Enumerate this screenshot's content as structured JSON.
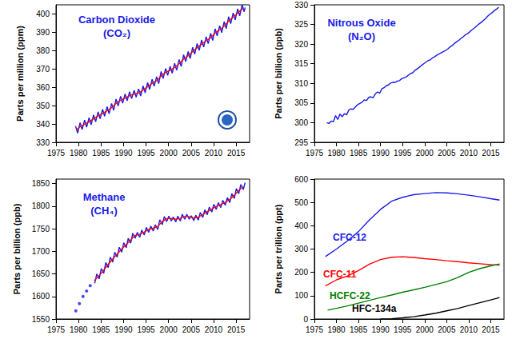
{
  "chart_data": [
    {
      "type": "line",
      "title": "Carbon Dioxide\n(CO₂)",
      "ylabel": "Parts per million (ppm)",
      "xlim": [
        1975,
        2018
      ],
      "xticks": [
        1975,
        1980,
        1985,
        1990,
        1995,
        2000,
        2005,
        2010,
        2015
      ],
      "ylim": [
        330,
        405
      ],
      "yticks": [
        330,
        340,
        350,
        360,
        370,
        380,
        390,
        400
      ],
      "grid": false,
      "series": [
        {
          "color": "#1a1ae6",
          "x": [
            1979.35,
            1979.8,
            1980.35,
            1980.8,
            1981.35,
            1981.8,
            1982.35,
            1982.8,
            1983.35,
            1983.8,
            1984.35,
            1984.8,
            1985.35,
            1985.8,
            1986.35,
            1986.8,
            1987.35,
            1987.8,
            1988.35,
            1988.8,
            1989.35,
            1989.8,
            1990.35,
            1990.8,
            1991.35,
            1991.8,
            1992.35,
            1992.8,
            1993.35,
            1993.8,
            1994.35,
            1994.8,
            1995.35,
            1995.8,
            1996.35,
            1996.8,
            1997.35,
            1997.8,
            1998.35,
            1998.8,
            1999.35,
            1999.8,
            2000.35,
            2000.8,
            2001.35,
            2001.8,
            2002.35,
            2002.8,
            2003.35,
            2003.8,
            2004.35,
            2004.8,
            2005.35,
            2005.8,
            2006.35,
            2006.8,
            2007.35,
            2007.8,
            2008.35,
            2008.8,
            2009.35,
            2009.8,
            2010.35,
            2010.8,
            2011.35,
            2011.8,
            2012.35,
            2012.8,
            2013.35,
            2013.8,
            2014.35,
            2014.8,
            2015.35,
            2015.8,
            2016.35,
            2016.8,
            2017.0
          ],
          "values": [
            338.8,
            335.0,
            340.7,
            336.9,
            342.1,
            338.3,
            343.4,
            339.6,
            345.0,
            341.2,
            346.6,
            342.8,
            348.0,
            344.2,
            349.4,
            345.6,
            351.2,
            347.4,
            353.6,
            349.8,
            355.1,
            351.3,
            356.4,
            352.6,
            357.6,
            353.8,
            358.4,
            354.6,
            359.1,
            355.3,
            360.8,
            357.0,
            362.6,
            358.8,
            364.4,
            360.6,
            365.8,
            362.0,
            368.6,
            364.8,
            370.3,
            366.5,
            371.5,
            367.7,
            373.1,
            369.3,
            375.2,
            371.4,
            377.8,
            374.0,
            379.5,
            375.7,
            381.8,
            378.0,
            383.9,
            380.1,
            385.8,
            382.0,
            387.6,
            383.8,
            389.4,
            385.6,
            391.9,
            388.1,
            393.6,
            389.8,
            395.8,
            392.0,
            398.5,
            394.7,
            400.6,
            396.8,
            402.8,
            399.0,
            405.0,
            401.2,
            403.5
          ]
        },
        {
          "color": "#ff0000",
          "x": [
            1979.5,
            1980.5,
            1981.5,
            1982.5,
            1983.5,
            1984.5,
            1985.5,
            1986.5,
            1987.5,
            1988.5,
            1989.5,
            1990.5,
            1991.5,
            1992.5,
            1993.5,
            1994.5,
            1995.5,
            1996.5,
            1997.5,
            1998.5,
            1999.5,
            2000.5,
            2001.5,
            2002.5,
            2003.5,
            2004.5,
            2005.5,
            2006.5,
            2007.5,
            2008.5,
            2009.5,
            2010.5,
            2011.5,
            2012.5,
            2013.5,
            2014.5,
            2015.5,
            2016.5
          ],
          "values": [
            336.8,
            338.7,
            340.1,
            341.4,
            343.0,
            344.6,
            346.0,
            347.4,
            349.2,
            351.6,
            353.1,
            354.4,
            355.6,
            356.4,
            357.1,
            358.8,
            360.6,
            362.4,
            363.8,
            366.6,
            368.3,
            369.5,
            371.1,
            373.2,
            375.8,
            377.5,
            379.8,
            381.9,
            383.8,
            385.6,
            387.4,
            389.9,
            391.6,
            393.8,
            396.5,
            398.6,
            400.8,
            403.0
          ]
        }
      ]
    },
    {
      "type": "line",
      "title": "Nitrous Oxide\n(N₂O)",
      "ylabel": "Parts per billion (ppb)",
      "xlim": [
        1975,
        2018
      ],
      "xticks": [
        1975,
        1980,
        1985,
        1990,
        1995,
        2000,
        2005,
        2010,
        2015
      ],
      "ylim": [
        295,
        330
      ],
      "yticks": [
        295,
        300,
        305,
        310,
        315,
        320,
        325,
        330
      ],
      "grid": false,
      "series": [
        {
          "color": "#1a1ae6",
          "x": [
            1977.8,
            1978.3,
            1978.8,
            1979.3,
            1979.8,
            1980.3,
            1980.8,
            1981.3,
            1981.8,
            1982.3,
            1982.8,
            1983.3,
            1983.8,
            1984.3,
            1984.8,
            1985.3,
            1985.8,
            1986.3,
            1986.8,
            1987.3,
            1987.8,
            1988.3,
            1988.8,
            1989.3,
            1989.8,
            1990.3,
            1990.8,
            1991.3,
            1991.8,
            1992.3,
            1992.8,
            1993.3,
            1993.8,
            1994.3,
            1994.8,
            1995.3,
            1995.8,
            1996.3,
            1996.8,
            1997.3,
            1997.8,
            1998.3,
            1998.8,
            1999.3,
            1999.8,
            2000.3,
            2000.8,
            2001.3,
            2001.8,
            2002.3,
            2002.8,
            2003.3,
            2003.8,
            2004.3,
            2004.8,
            2005.3,
            2005.8,
            2006.3,
            2006.8,
            2007.3,
            2007.8,
            2008.3,
            2008.8,
            2009.3,
            2009.8,
            2010.3,
            2010.8,
            2011.3,
            2011.8,
            2012.3,
            2012.8,
            2013.3,
            2013.8,
            2014.3,
            2014.8,
            2015.3,
            2015.8,
            2016.3,
            2016.8
          ],
          "values": [
            300.0,
            299.8,
            300.4,
            300.2,
            301.8,
            300.8,
            302.2,
            301.5,
            302.3,
            302.0,
            303.2,
            303.5,
            303.4,
            304.0,
            304.6,
            304.9,
            305.2,
            305.8,
            305.6,
            306.4,
            306.6,
            306.3,
            307.3,
            307.8,
            307.5,
            308.6,
            308.9,
            309.4,
            309.6,
            310.1,
            310.3,
            310.2,
            310.6,
            310.7,
            311.2,
            311.4,
            311.6,
            312.1,
            312.5,
            312.7,
            313.3,
            313.7,
            314.1,
            314.6,
            315.0,
            315.4,
            315.8,
            316.0,
            316.5,
            316.8,
            317.2,
            317.5,
            317.8,
            318.1,
            318.4,
            318.8,
            319.3,
            319.7,
            320.2,
            320.6,
            321.0,
            321.5,
            321.9,
            322.4,
            322.7,
            323.2,
            323.7,
            324.1,
            324.6,
            325.1,
            325.5,
            326.0,
            326.5,
            327.1,
            327.6,
            328.0,
            328.5,
            328.9,
            329.4
          ]
        }
      ]
    },
    {
      "type": "line",
      "title": "Methane\n(CH₄)",
      "ylabel": "Parts per billion (ppb)",
      "xlim": [
        1975,
        2018
      ],
      "xticks": [
        1975,
        1980,
        1985,
        1990,
        1995,
        2000,
        2005,
        2010,
        2015
      ],
      "ylim": [
        1550,
        1860
      ],
      "yticks": [
        1550,
        1600,
        1650,
        1700,
        1750,
        1800,
        1850
      ],
      "grid": false,
      "series": [
        {
          "type": "scatter",
          "marker": "circle",
          "color": "#1a1ae6",
          "x": [
            1979.4,
            1980.2,
            1981.0,
            1981.8,
            1982.6
          ],
          "values": [
            1568,
            1584,
            1600,
            1612,
            1624
          ]
        },
        {
          "color": "#1a1ae6",
          "x": [
            1983.6,
            1984.05,
            1984.6,
            1985.05,
            1985.6,
            1986.05,
            1986.6,
            1987.05,
            1987.6,
            1988.05,
            1988.6,
            1989.05,
            1989.6,
            1990.05,
            1990.6,
            1991.05,
            1991.6,
            1992.05,
            1992.6,
            1993.05,
            1993.6,
            1994.05,
            1994.6,
            1995.05,
            1995.6,
            1996.05,
            1996.6,
            1997.05,
            1997.6,
            1998.05,
            1998.6,
            1999.05,
            1999.6,
            2000.05,
            2000.6,
            2001.05,
            2001.6,
            2002.05,
            2002.6,
            2003.05,
            2003.6,
            2004.05,
            2004.6,
            2005.05,
            2005.6,
            2006.05,
            2006.6,
            2007.05,
            2007.6,
            2008.05,
            2008.6,
            2009.05,
            2009.6,
            2010.05,
            2010.6,
            2011.05,
            2011.6,
            2012.05,
            2012.6,
            2013.05,
            2013.6,
            2014.05,
            2014.6,
            2015.05,
            2015.6,
            2016.05,
            2016.6,
            2017.0
          ],
          "values": [
            1629,
            1650,
            1639,
            1662,
            1651,
            1675,
            1664,
            1687,
            1676,
            1698,
            1687,
            1709,
            1698,
            1719,
            1708,
            1729,
            1718,
            1740,
            1729,
            1742,
            1731,
            1747,
            1736,
            1753,
            1742,
            1756,
            1745,
            1759,
            1748,
            1770,
            1759,
            1777,
            1766,
            1778,
            1767,
            1776,
            1765,
            1778,
            1767,
            1782,
            1771,
            1782,
            1771,
            1779,
            1768,
            1780,
            1769,
            1786,
            1775,
            1792,
            1781,
            1798,
            1787,
            1804,
            1793,
            1808,
            1797,
            1813,
            1802,
            1819,
            1808,
            1828,
            1817,
            1839,
            1828,
            1848,
            1837,
            1852
          ]
        },
        {
          "color": "#ff0000",
          "x": [
            1983.5,
            1984.5,
            1985.5,
            1986.5,
            1987.5,
            1988.5,
            1989.5,
            1990.5,
            1991.5,
            1992.5,
            1993.5,
            1994.5,
            1995.5,
            1996.5,
            1997.5,
            1998.5,
            1999.5,
            2000.5,
            2001.5,
            2002.5,
            2003.5,
            2004.5,
            2005.5,
            2006.5,
            2007.5,
            2008.5,
            2009.5,
            2010.5,
            2011.5,
            2012.5,
            2013.5,
            2014.5,
            2015.5,
            2016.5
          ],
          "values": [
            1635,
            1645,
            1657,
            1670,
            1682,
            1693,
            1704,
            1714,
            1724,
            1735,
            1737,
            1742,
            1748,
            1751,
            1754,
            1765,
            1772,
            1773,
            1771,
            1773,
            1777,
            1777,
            1774,
            1775,
            1781,
            1787,
            1793,
            1799,
            1803,
            1808,
            1814,
            1823,
            1834,
            1843
          ]
        }
      ]
    },
    {
      "type": "line",
      "ylabel": "Parts per trillion (ppt)",
      "xlim": [
        1975,
        2018
      ],
      "xticks": [
        1975,
        1980,
        1985,
        1990,
        1995,
        2000,
        2005,
        2010,
        2015
      ],
      "ylim": [
        0,
        600
      ],
      "yticks": [
        0,
        100,
        200,
        300,
        400,
        500,
        600
      ],
      "grid": false,
      "series": [
        {
          "name": "CFC-12",
          "color": "#1a1ae6",
          "x": [
            1977.5,
            1980,
            1982.5,
            1985,
            1987.5,
            1990,
            1992.5,
            1995,
            1997.5,
            2000,
            2002.5,
            2005,
            2007.5,
            2010,
            2012.5,
            2015,
            2017
          ],
          "values": [
            268,
            300,
            335,
            375,
            425,
            470,
            505,
            522,
            533,
            538,
            542,
            541,
            537,
            531,
            524,
            516,
            510
          ]
        },
        {
          "name": "CFC-11",
          "color": "#ff0000",
          "x": [
            1977.5,
            1980,
            1982.5,
            1985,
            1987.5,
            1990,
            1992.5,
            1995,
            1997.5,
            2000,
            2002.5,
            2005,
            2007.5,
            2010,
            2012.5,
            2015,
            2017
          ],
          "values": [
            142,
            168,
            185,
            208,
            235,
            255,
            265,
            267,
            264,
            259,
            255,
            250,
            246,
            241,
            237,
            233,
            231
          ]
        },
        {
          "name": "HCFC-22",
          "color": "#008000",
          "x": [
            1978,
            1980,
            1982.5,
            1985,
            1987.5,
            1990,
            1992.5,
            1995,
            1997.5,
            2000,
            2002.5,
            2005,
            2007.5,
            2010,
            2012.5,
            2015,
            2017
          ],
          "values": [
            38,
            46,
            56,
            68,
            80,
            92,
            103,
            115,
            125,
            136,
            148,
            160,
            178,
            200,
            216,
            228,
            236
          ]
        },
        {
          "name": "HFC-134a",
          "color": "#000000",
          "x": [
            1990,
            1992.5,
            1995,
            1997.5,
            2000,
            2002.5,
            2005,
            2007.5,
            2010,
            2012.5,
            2015,
            2017
          ],
          "values": [
            0,
            1,
            5,
            10,
            17,
            25,
            35,
            45,
            58,
            70,
            82,
            92
          ]
        }
      ]
    }
  ]
}
